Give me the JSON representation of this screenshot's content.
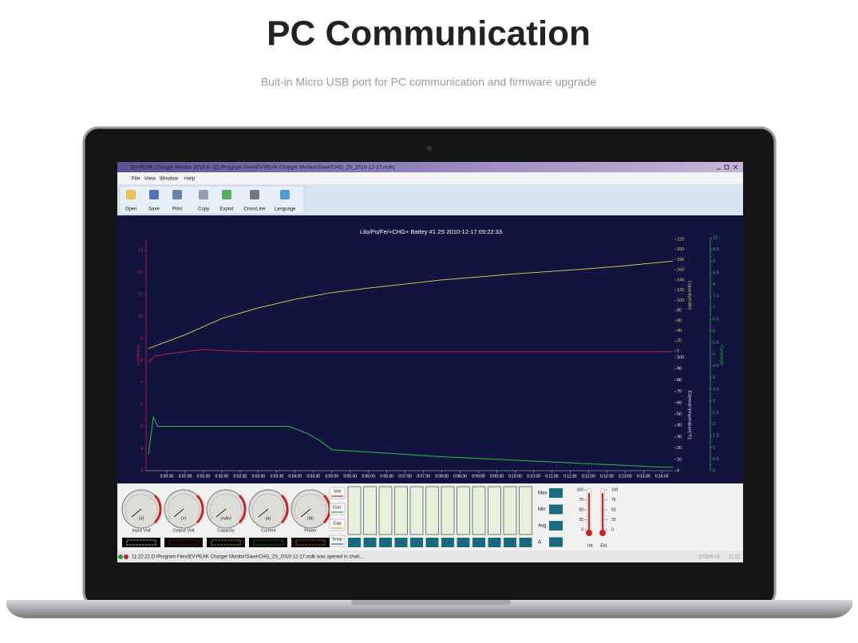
{
  "header": {
    "title": "PC Communication",
    "subtitle": "Buit-in Micro USB port for PC communication and firmware upgrade"
  },
  "window": {
    "title": "EV-PEAK Charger Monitor 2016.8 - [D:\\Program Files\\EV-PEAK Charger Monitor\\Save\\CHG_2S_2010-12-17.mdb]",
    "menu": [
      "File",
      "View",
      "Window",
      "Help"
    ],
    "toolbar": [
      "Open",
      "Save",
      "Print",
      "Copy",
      "Export",
      "CrossLine",
      "Language"
    ]
  },
  "chart": {
    "type": "line",
    "title": "Lilo/Po/Fe/+CHG+ Battey #1 2S  2010-12-17  09:22:33",
    "xlim": [
      0,
      858
    ],
    "xticks": [
      {
        "value": 30,
        "label": "0:00:30"
      },
      {
        "value": 60,
        "label": "0:01:00"
      },
      {
        "value": 90,
        "label": "0:01:30"
      },
      {
        "value": 120,
        "label": "0:02:00"
      },
      {
        "value": 150,
        "label": "0:02:30"
      },
      {
        "value": 180,
        "label": "0:03:00"
      },
      {
        "value": 210,
        "label": "0:03:30"
      },
      {
        "value": 240,
        "label": "0:04:00"
      },
      {
        "value": 270,
        "label": "0:04:30"
      },
      {
        "value": 300,
        "label": "0:05:00"
      },
      {
        "value": 330,
        "label": "0:05:30"
      },
      {
        "value": 360,
        "label": "0:06:00"
      },
      {
        "value": 390,
        "label": "0:06:30"
      },
      {
        "value": 420,
        "label": "0:07:00"
      },
      {
        "value": 450,
        "label": "0:07:30"
      },
      {
        "value": 480,
        "label": "0:08:00"
      },
      {
        "value": 510,
        "label": "0:08:30"
      },
      {
        "value": 540,
        "label": "0:09:00"
      },
      {
        "value": 570,
        "label": "0:09:30"
      },
      {
        "value": 600,
        "label": "0:10:00"
      },
      {
        "value": 630,
        "label": "0:10:30"
      },
      {
        "value": 660,
        "label": "0:11:00"
      },
      {
        "value": 690,
        "label": "0:11:30"
      },
      {
        "value": 720,
        "label": "0:12:00"
      },
      {
        "value": 750,
        "label": "0:12:30"
      },
      {
        "value": 780,
        "label": "0:13:00"
      },
      {
        "value": 810,
        "label": "0:13:30"
      },
      {
        "value": 840,
        "label": "0:14:00"
      }
    ],
    "voltage_axis": {
      "label": "Voltage(V)",
      "lim": [
        3,
        13.5
      ],
      "ticks": [
        3,
        4,
        5,
        6,
        7,
        8,
        9,
        10,
        11,
        12,
        13
      ],
      "color": "#d0204a"
    },
    "capacity_axis": {
      "label": "Capacity(mAh)",
      "lim": [
        0,
        220
      ],
      "ticks": [
        0,
        20,
        40,
        60,
        80,
        100,
        120,
        140,
        160,
        180,
        200,
        220
      ],
      "color": "#d8d060"
    },
    "temperature_axis": {
      "label": "External temperature(°C)",
      "lim": [
        0,
        100
      ],
      "ticks": [
        0,
        10,
        20,
        30,
        40,
        50,
        60,
        70,
        80,
        90,
        100
      ],
      "color": "#e8e8f0"
    },
    "current_axis": {
      "label": "Current(A)",
      "lim": [
        0,
        10
      ],
      "ticks": [
        0,
        0.5,
        1,
        1.5,
        2,
        2.5,
        3,
        3.5,
        4,
        4.5,
        5,
        5.5,
        6,
        6.5,
        7,
        7.5,
        8,
        8.5,
        9,
        9.5,
        10
      ],
      "color": "#20c040"
    },
    "series": [
      {
        "axis": "capacity_axis",
        "color": "#c8c050",
        "x": [
          0,
          60,
          120,
          180,
          240,
          300,
          360,
          420,
          480,
          540,
          600,
          660,
          720,
          780,
          840,
          858
        ],
        "values": [
          5,
          32,
          64,
          85,
          102,
          115,
          124,
          132,
          140,
          146,
          152,
          157,
          162,
          168,
          175,
          177
        ]
      },
      {
        "axis": "voltage_axis",
        "color": "#c0203a",
        "x": [
          0,
          10,
          30,
          90,
          120,
          180,
          858
        ],
        "values": [
          7.9,
          8.2,
          8.3,
          8.5,
          8.45,
          8.4,
          8.4
        ]
      },
      {
        "axis": "current_axis",
        "color": "#20c040",
        "x": [
          0,
          8,
          15,
          230,
          260,
          280,
          300,
          360,
          480,
          600,
          720,
          840,
          858
        ],
        "values": [
          0.7,
          2.3,
          1.9,
          1.9,
          1.6,
          1.3,
          0.9,
          0.8,
          0.6,
          0.45,
          0.3,
          0.15,
          0.15
        ]
      }
    ]
  },
  "panel": {
    "gauges": [
      {
        "label": "Input Volt",
        "unit": "(V)"
      },
      {
        "label": "Output Volt",
        "unit": "(V)"
      },
      {
        "label": "Capacity",
        "unit": "(mAh)"
      },
      {
        "label": "Current",
        "unit": "(A)"
      },
      {
        "label": "Power",
        "unit": "(W)"
      }
    ],
    "buttons": [
      "Volt",
      "Curr",
      "Cap",
      "Temp"
    ],
    "stats": [
      "Max",
      "Min",
      "Avg",
      "Δ"
    ],
    "thermometers": {
      "scale": [
        100,
        75,
        50,
        25,
        0
      ],
      "labels": [
        "Int.",
        "Ext."
      ]
    }
  },
  "status": {
    "message": "11:22:22  D:\\Program Files\\EV-PEAK Charger Monitor\\Save\\CHG_2S_2010-12-17.mdb was opened in chart...",
    "date": "2018/6/19",
    "time": "11:22"
  }
}
